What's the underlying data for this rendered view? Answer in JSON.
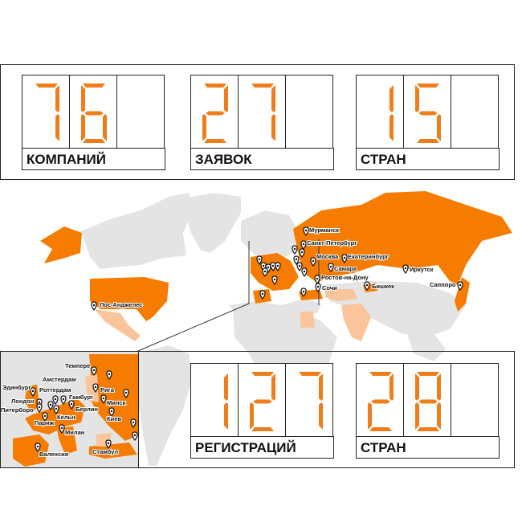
{
  "colors": {
    "accent": "#f07d1a",
    "country_active": "#f57c00",
    "country_light": "#fbc49a",
    "land": "#e4e4e4"
  },
  "stats_top": [
    {
      "value": "76",
      "label": "КОМПАНИЙ"
    },
    {
      "value": "27",
      "label": "ЗАЯВОК"
    },
    {
      "value": "15",
      "label": "СТРАН"
    }
  ],
  "stats_bottom": [
    {
      "value": "127",
      "label": "РЕГИСТРАЦИЙ"
    },
    {
      "value": "28",
      "label": "СТРАН"
    }
  ],
  "map_cities": [
    "Мурманск",
    "Санкт-Петербург",
    "Москва",
    "Екатеринбург",
    "Самара",
    "Ростов-на-Дону",
    "Сочи",
    "Иркутск",
    "Бишкек",
    "Саппоро",
    "Лос-Анджелес"
  ],
  "inset_cities": [
    "Темпере",
    "Амстердам",
    "Эдинбург",
    "Роттердам",
    "Гамбург",
    "Рига",
    "Минск",
    "Лондон",
    "Питерборо",
    "Берлин",
    "Кельн",
    "Париж",
    "Киев",
    "Милан",
    "Валенсия",
    "Стамбул"
  ]
}
